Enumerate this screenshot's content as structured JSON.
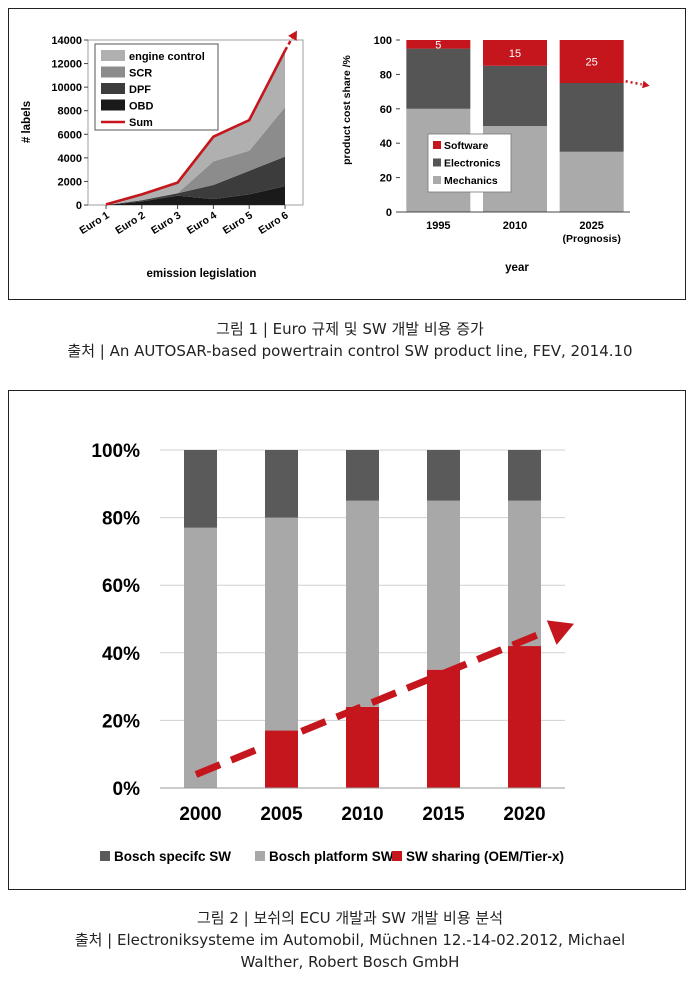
{
  "chart_data": [
    {
      "type": "area",
      "categories": [
        "Euro 1",
        "Euro 2",
        "Euro 3",
        "Euro 4",
        "Euro 5",
        "Euro 6"
      ],
      "series": [
        {
          "name": "engine control",
          "values": [
            50,
            500,
            900,
            2100,
            2600,
            4800
          ],
          "color": "#b0b0b0"
        },
        {
          "name": "SCR",
          "values": [
            0,
            0,
            0,
            2000,
            1700,
            4200
          ],
          "color": "#8c8c8c"
        },
        {
          "name": "DPF",
          "values": [
            0,
            100,
            200,
            1200,
            2000,
            2500
          ],
          "color": "#3c3c3c"
        },
        {
          "name": "OBD",
          "values": [
            0,
            300,
            800,
            500,
            900,
            1600
          ],
          "color": "#1a1a1a"
        }
      ],
      "sum": {
        "name": "Sum",
        "values": [
          50,
          900,
          1900,
          5800,
          7200,
          13100
        ],
        "color": "#c4161c"
      },
      "yticks": [
        "0",
        "2000",
        "4000",
        "6000",
        "8000",
        "10000",
        "12000",
        "14000"
      ],
      "ylim": [
        0,
        14000
      ],
      "xlabel": "emission legislation",
      "ylabel": "# labels"
    },
    {
      "type": "bar",
      "stacked": true,
      "categories": [
        "1995",
        "2010",
        "2025"
      ],
      "category_notes": [
        "",
        "",
        "(Prognosis)"
      ],
      "series": [
        {
          "name": "Mechanics",
          "values": [
            60,
            50,
            35
          ],
          "color": "#aaaaaa"
        },
        {
          "name": "Electronics",
          "values": [
            35,
            35,
            40
          ],
          "color": "#555555"
        },
        {
          "name": "Software",
          "values": [
            5,
            15,
            25
          ],
          "color": "#c4161c"
        }
      ],
      "data_labels": [
        "5",
        "15",
        "25"
      ],
      "yticks": [
        "0",
        "20",
        "40",
        "60",
        "80",
        "100"
      ],
      "ylim": [
        0,
        100
      ],
      "xlabel": "year",
      "ylabel": "product cost share /%"
    },
    {
      "type": "bar",
      "stacked": true,
      "categories": [
        "2000",
        "2005",
        "2010",
        "2015",
        "2020"
      ],
      "series": [
        {
          "name": "SW sharing (OEM/Tier-x)",
          "values": [
            0,
            17,
            24,
            35,
            42
          ],
          "color": "#c4161c"
        },
        {
          "name": "Bosch platform SW",
          "values": [
            77,
            63,
            61,
            50,
            43
          ],
          "color": "#a8a8a8"
        },
        {
          "name": "Bosch specifc SW",
          "values": [
            23,
            20,
            15,
            15,
            15
          ],
          "color": "#5a5a5a"
        }
      ],
      "legend_order": [
        "Bosch specifc SW",
        "Bosch platform SW",
        "SW sharing (OEM/Tier-x)"
      ],
      "yticks": [
        "0%",
        "20%",
        "40%",
        "60%",
        "80%",
        "100%"
      ],
      "ylim": [
        0,
        100
      ]
    }
  ],
  "captions": {
    "fig1_title": "그림 1 |  Euro 규제 및 SW 개발 비용 증가",
    "fig1_source": "출처 | An AUTOSAR-based powertrain control SW product line, FEV, 2014.10",
    "fig2_title": "그림 2 | 보쉬의 ECU 개발과 SW 개발 비용 분석",
    "fig2_source_1": "출처 | Electroniksysteme im Automobil, Müchnen 12.-14-02.2012, Michael",
    "fig2_source_2": "Walther, Robert Bosch GmbH"
  }
}
